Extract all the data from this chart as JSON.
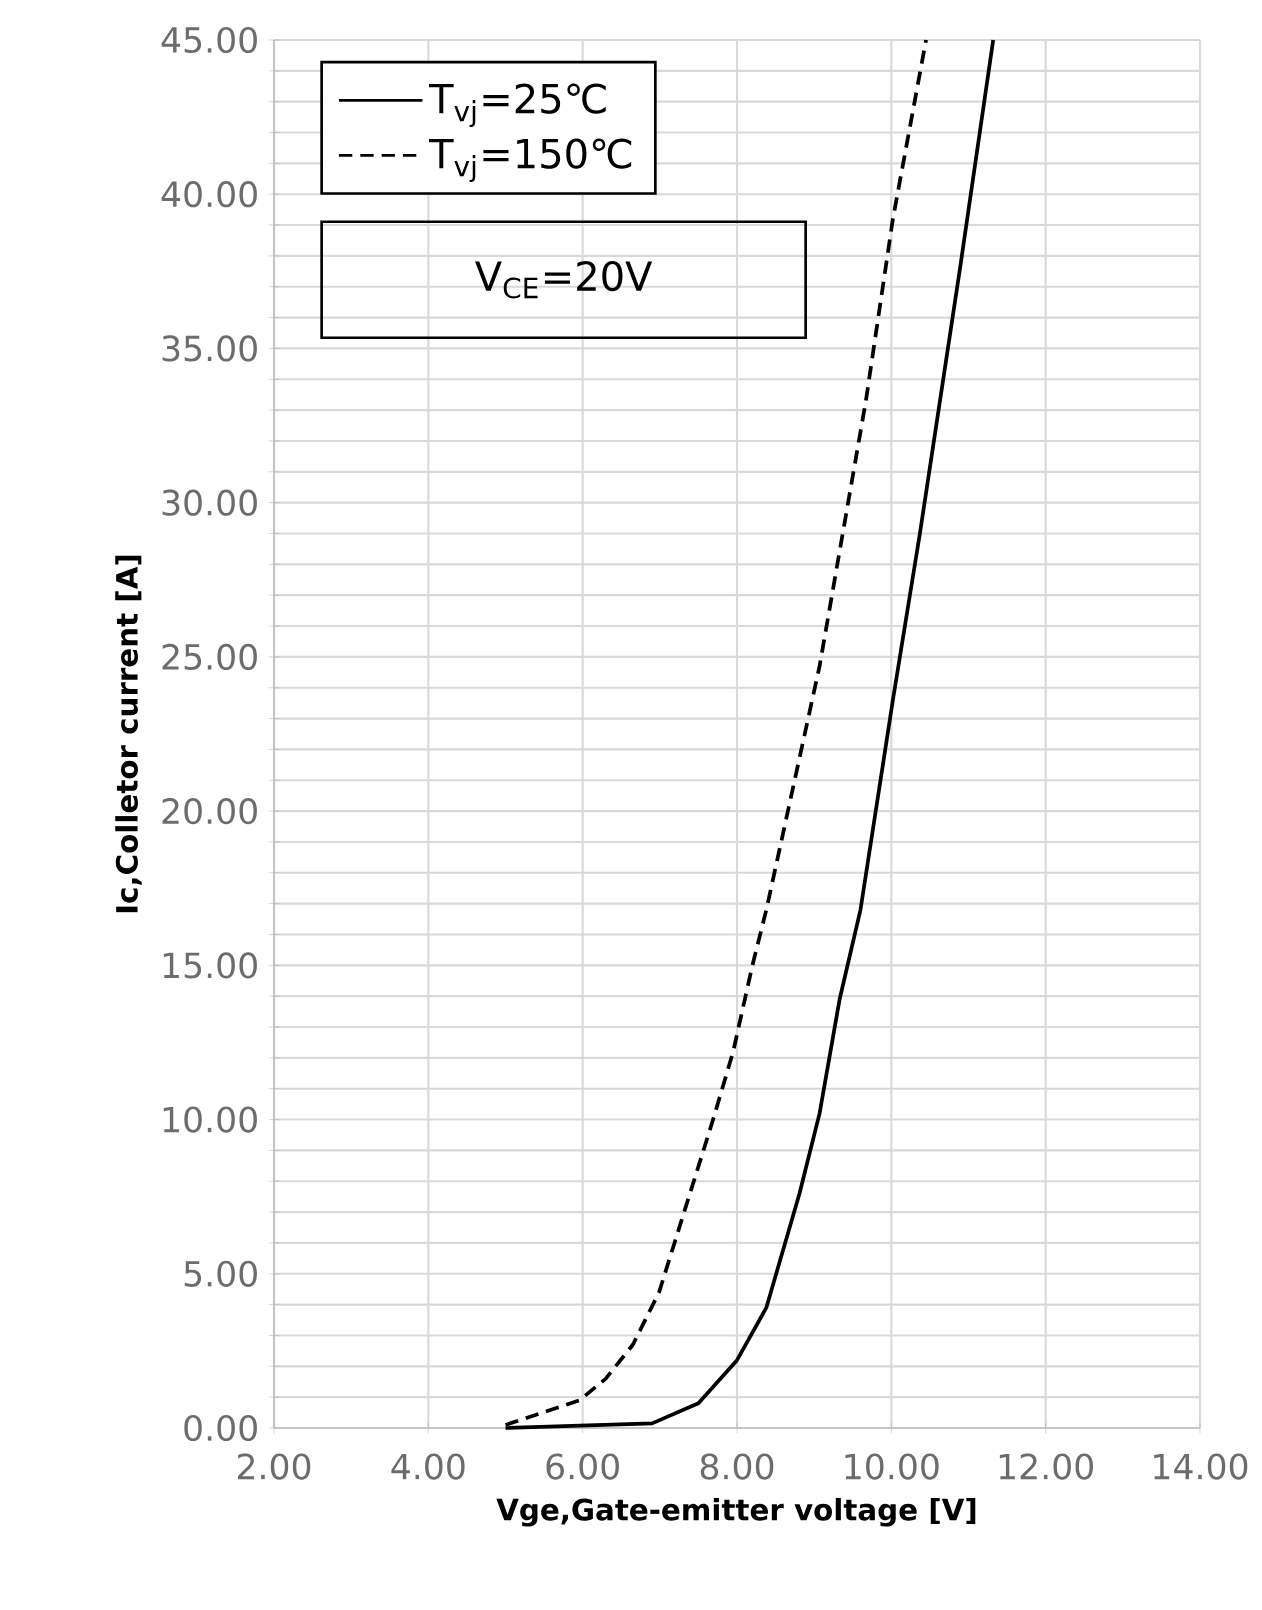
{
  "chart_data": {
    "type": "line",
    "xlabel": "Vge,Gate-emitter voltage [V]",
    "ylabel": "Ic,Colletor current [A]",
    "xlim": [
      2,
      14
    ],
    "xticks": [
      {
        "value": 2,
        "label": "2.00"
      },
      {
        "value": 4,
        "label": "4.00"
      },
      {
        "value": 6,
        "label": "6.00"
      },
      {
        "value": 8,
        "label": "8.00"
      },
      {
        "value": 10,
        "label": "10.00"
      },
      {
        "value": 12,
        "label": "12.00"
      },
      {
        "value": 14,
        "label": "14.00"
      }
    ],
    "ylim": [
      0,
      45
    ],
    "yticks": [
      {
        "value": 0,
        "label": "0.00"
      },
      {
        "value": 1,
        "label": null
      },
      {
        "value": 2,
        "label": null
      },
      {
        "value": 3,
        "label": null
      },
      {
        "value": 4,
        "label": null
      },
      {
        "value": 5,
        "label": "5.00"
      },
      {
        "value": 6,
        "label": null
      },
      {
        "value": 7,
        "label": null
      },
      {
        "value": 8,
        "label": null
      },
      {
        "value": 9,
        "label": null
      },
      {
        "value": 10,
        "label": "10.00"
      },
      {
        "value": 11,
        "label": null
      },
      {
        "value": 12,
        "label": null
      },
      {
        "value": 13,
        "label": null
      },
      {
        "value": 14,
        "label": null
      },
      {
        "value": 15,
        "label": "15.00"
      },
      {
        "value": 16,
        "label": null
      },
      {
        "value": 17,
        "label": null
      },
      {
        "value": 18,
        "label": null
      },
      {
        "value": 19,
        "label": null
      },
      {
        "value": 20,
        "label": "20.00"
      },
      {
        "value": 21,
        "label": null
      },
      {
        "value": 22,
        "label": null
      },
      {
        "value": 23,
        "label": null
      },
      {
        "value": 24,
        "label": null
      },
      {
        "value": 25,
        "label": "25.00"
      },
      {
        "value": 26,
        "label": null
      },
      {
        "value": 27,
        "label": null
      },
      {
        "value": 28,
        "label": null
      },
      {
        "value": 29,
        "label": null
      },
      {
        "value": 30,
        "label": "30.00"
      },
      {
        "value": 31,
        "label": null
      },
      {
        "value": 32,
        "label": null
      },
      {
        "value": 33,
        "label": null
      },
      {
        "value": 34,
        "label": null
      },
      {
        "value": 35,
        "label": "35.00"
      },
      {
        "value": 36,
        "label": null
      },
      {
        "value": 37,
        "label": null
      },
      {
        "value": 38,
        "label": null
      },
      {
        "value": 39,
        "label": null
      },
      {
        "value": 40,
        "label": "40.00"
      },
      {
        "value": 41,
        "label": null
      },
      {
        "value": 42,
        "label": null
      },
      {
        "value": 43,
        "label": null
      },
      {
        "value": 44,
        "label": null
      },
      {
        "value": 45,
        "label": "45.00"
      }
    ],
    "grid": true,
    "legend": "top left",
    "annotations": [
      "V$_{CE}$=20V"
    ],
    "series": [
      {
        "name": "T$_{vj}$=25℃",
        "color": "#000000",
        "line_style": "solid",
        "x": [
          5.0,
          6.9,
          7.5,
          8.0,
          8.38,
          8.81,
          9.07,
          9.33,
          9.6,
          10.02,
          10.37,
          10.89,
          11.32
        ],
        "values": [
          0.0,
          0.15,
          0.8,
          2.2,
          3.9,
          7.6,
          10.2,
          13.9,
          16.8,
          23.6,
          29.0,
          37.6,
          45.0
        ]
      },
      {
        "name": "T$_{vj}$=150℃",
        "color": "#000000",
        "line_style": "dashed",
        "x": [
          5.0,
          5.96,
          6.3,
          6.65,
          6.99,
          7.34,
          7.69,
          7.95,
          8.2,
          8.38,
          9.07,
          9.67,
          10.02,
          10.45
        ],
        "values": [
          0.1,
          0.9,
          1.6,
          2.7,
          4.4,
          7.2,
          10.0,
          12.2,
          15.0,
          16.8,
          24.7,
          33.3,
          39.2,
          45.0
        ]
      }
    ]
  }
}
